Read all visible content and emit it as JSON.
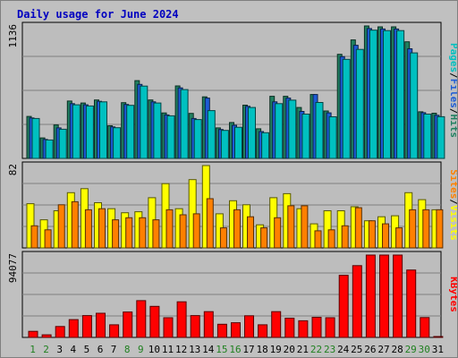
{
  "title": "Daily usage for June 2024",
  "colors": {
    "background": "#c0c0c0",
    "panel": "#bdbdbd",
    "title": "#0000c0",
    "pages": "#00c0c0",
    "files": "#1c5bd6",
    "hits": "#208060",
    "sites": "#ff8000",
    "visits": "#ffff00",
    "kbytes": "#ff0000",
    "weekend_day": "#208020",
    "weekday": "#000000"
  },
  "chart_data": [
    {
      "type": "bar",
      "panel": "hits-files-pages",
      "categories": [
        "1",
        "2",
        "3",
        "4",
        "5",
        "6",
        "7",
        "8",
        "9",
        "10",
        "11",
        "12",
        "13",
        "14",
        "15",
        "16",
        "17",
        "18",
        "19",
        "20",
        "21",
        "22",
        "23",
        "24",
        "25",
        "26",
        "27",
        "28",
        "29",
        "30",
        "31"
      ],
      "weekend_days": [
        "1",
        "2",
        "8",
        "9",
        "15",
        "16",
        "22",
        "23",
        "29",
        "30"
      ],
      "ymax_label": "1136",
      "ylim": [
        0,
        1136
      ],
      "legend": [
        "Pages",
        "Files",
        "Hits"
      ],
      "legend_separator": "/",
      "legend_placement": "right",
      "series": [
        {
          "name": "Hits",
          "values": [
            360,
            176,
            287,
            492,
            475,
            501,
            280,
            478,
            667,
            501,
            390,
            622,
            386,
            528,
            262,
            308,
            457,
            254,
            533,
            533,
            437,
            548,
            407,
            893,
            1016,
            1136,
            1128,
            1128,
            1000,
            400,
            388
          ]
        },
        {
          "name": "Files",
          "values": [
            347,
            163,
            262,
            470,
            460,
            490,
            270,
            463,
            635,
            485,
            373,
            605,
            342,
            517,
            248,
            284,
            447,
            230,
            485,
            517,
            403,
            548,
            391,
            873,
            970,
            1114,
            1110,
            1110,
            940,
            392,
            370
          ]
        },
        {
          "name": "Pages",
          "values": [
            342,
            158,
            250,
            460,
            450,
            485,
            263,
            455,
            620,
            475,
            365,
            590,
            333,
            410,
            240,
            267,
            437,
            220,
            470,
            500,
            380,
            480,
            357,
            850,
            935,
            1100,
            1096,
            1096,
            905,
            380,
            358
          ]
        }
      ]
    },
    {
      "type": "bar",
      "panel": "visits-sites",
      "categories": [
        "1",
        "2",
        "3",
        "4",
        "5",
        "6",
        "7",
        "8",
        "9",
        "10",
        "11",
        "12",
        "13",
        "14",
        "15",
        "16",
        "17",
        "18",
        "19",
        "20",
        "21",
        "22",
        "23",
        "24",
        "25",
        "26",
        "27",
        "28",
        "29",
        "30",
        "31"
      ],
      "ymax_label": "82",
      "ylim": [
        0,
        82
      ],
      "legend": [
        "Sites",
        "Visits"
      ],
      "legend_separator": "/",
      "legend_placement": "right",
      "series": [
        {
          "name": "Visits",
          "values": [
            44,
            28,
            37,
            55,
            59,
            45,
            39,
            35,
            36,
            50,
            64,
            39,
            68,
            82,
            34,
            47,
            43,
            23,
            50,
            54,
            39,
            24,
            37,
            37,
            41,
            27,
            31,
            32,
            55,
            48,
            38
          ]
        },
        {
          "name": "Sites",
          "values": [
            22,
            18,
            43,
            46,
            38,
            39,
            28,
            30,
            30,
            28,
            38,
            33,
            34,
            49,
            20,
            38,
            31,
            20,
            30,
            42,
            42,
            17,
            18,
            22,
            40,
            27,
            24,
            20,
            38,
            38,
            38
          ]
        }
      ]
    },
    {
      "type": "bar",
      "panel": "kbytes",
      "categories": [
        "1",
        "2",
        "3",
        "4",
        "5",
        "6",
        "7",
        "8",
        "9",
        "10",
        "11",
        "12",
        "13",
        "14",
        "15",
        "16",
        "17",
        "18",
        "19",
        "20",
        "21",
        "22",
        "23",
        "24",
        "25",
        "26",
        "27",
        "28",
        "29",
        "30",
        "31"
      ],
      "ymax_label": "94077",
      "ylim": [
        0,
        94077
      ],
      "legend": [
        "KBytes"
      ],
      "legend_placement": "right",
      "series": [
        {
          "name": "KBytes",
          "values": [
            7000,
            3000,
            12500,
            20400,
            25000,
            27600,
            14400,
            29000,
            42000,
            35500,
            22500,
            40700,
            25000,
            29500,
            15000,
            16800,
            24700,
            14400,
            29500,
            22000,
            19000,
            23000,
            22500,
            71000,
            82000,
            94077,
            94077,
            94077,
            77000,
            22700,
            100
          ]
        }
      ]
    }
  ]
}
